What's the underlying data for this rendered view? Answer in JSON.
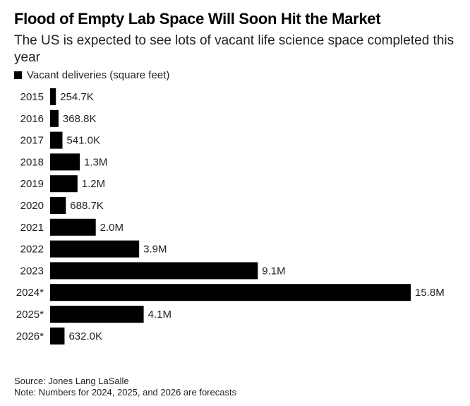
{
  "chart_data": {
    "type": "bar",
    "orientation": "horizontal",
    "title": "Flood of Empty Lab Space Will Soon Hit the Market",
    "subtitle": "The US is expected to see lots of vacant life science space completed this year",
    "legend": [
      {
        "name": "Vacant deliveries (square feet)",
        "color": "#000000"
      }
    ],
    "categories": [
      "2015",
      "2016",
      "2017",
      "2018",
      "2019",
      "2020",
      "2021",
      "2022",
      "2023",
      "2024*",
      "2025*",
      "2026*"
    ],
    "values": [
      254700,
      368800,
      541000,
      1300000,
      1200000,
      688700,
      2000000,
      3900000,
      9100000,
      15800000,
      4100000,
      632000
    ],
    "labels": [
      "254.7K",
      "368.8K",
      "541.0K",
      "1.3M",
      "1.2M",
      "688.7K",
      "2.0M",
      "3.9M",
      "9.1M",
      "15.8M",
      "4.1M",
      "632.0K"
    ],
    "xlim": [
      0,
      15800000
    ],
    "source": "Source: Jones Lang LaSalle",
    "note": "Note: Numbers for 2024, 2025, and 2026 are forecasts"
  }
}
